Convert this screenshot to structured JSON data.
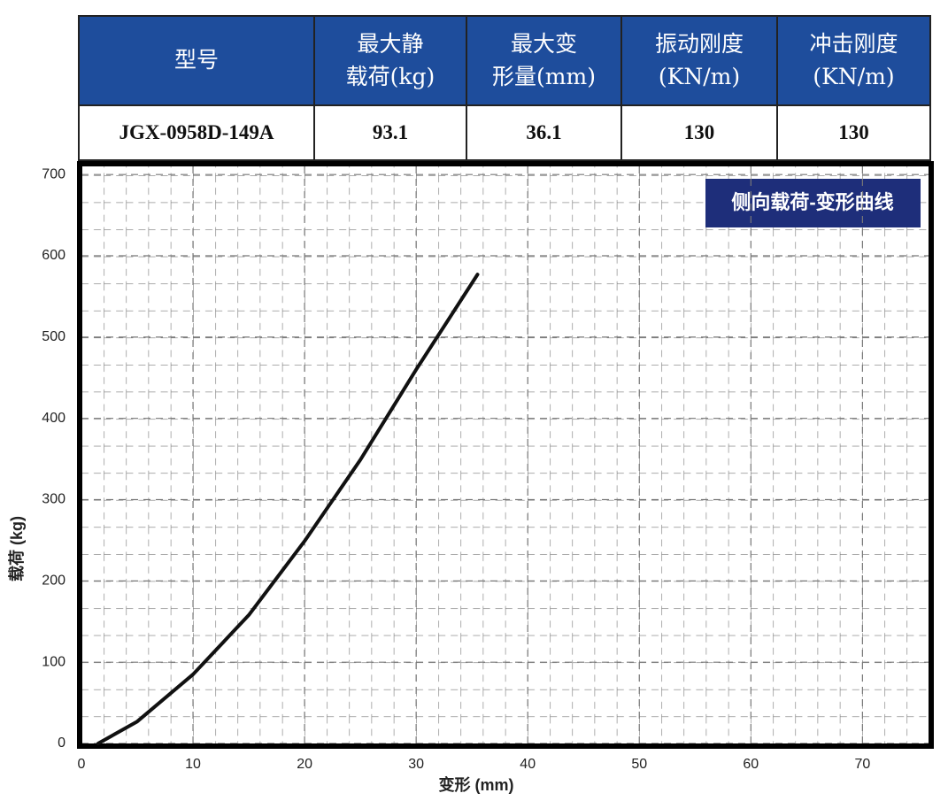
{
  "table": {
    "header": [
      "型号",
      "最大静\n载荷(kg)",
      "最大变\n形量(mm)",
      "振动刚度\n(KN/m)",
      "冲击刚度\n(KN/m)"
    ],
    "rows": [
      [
        "JGX-0958D-149A",
        "93.1",
        "36.1",
        "130",
        "130"
      ]
    ]
  },
  "chart_data": {
    "type": "line",
    "title": "侧向载荷-变形曲线",
    "x_label": "变形 (mm)",
    "y_label": "载荷 (kg)",
    "x": [
      1.5,
      5,
      10,
      15,
      20,
      25,
      30,
      35.5
    ],
    "series": [
      {
        "name": "侧向载荷",
        "color": "#111111",
        "values": [
          0,
          27,
          85,
          158,
          249,
          349,
          460,
          577
        ]
      }
    ],
    "xlim": [
      0,
      76
    ],
    "xticks": [
      0,
      10,
      20,
      30,
      40,
      50,
      60,
      70
    ],
    "ylim": [
      0,
      710
    ],
    "yticks": [
      0,
      100,
      200,
      300,
      400,
      500,
      600,
      700
    ],
    "grid": true
  }
}
